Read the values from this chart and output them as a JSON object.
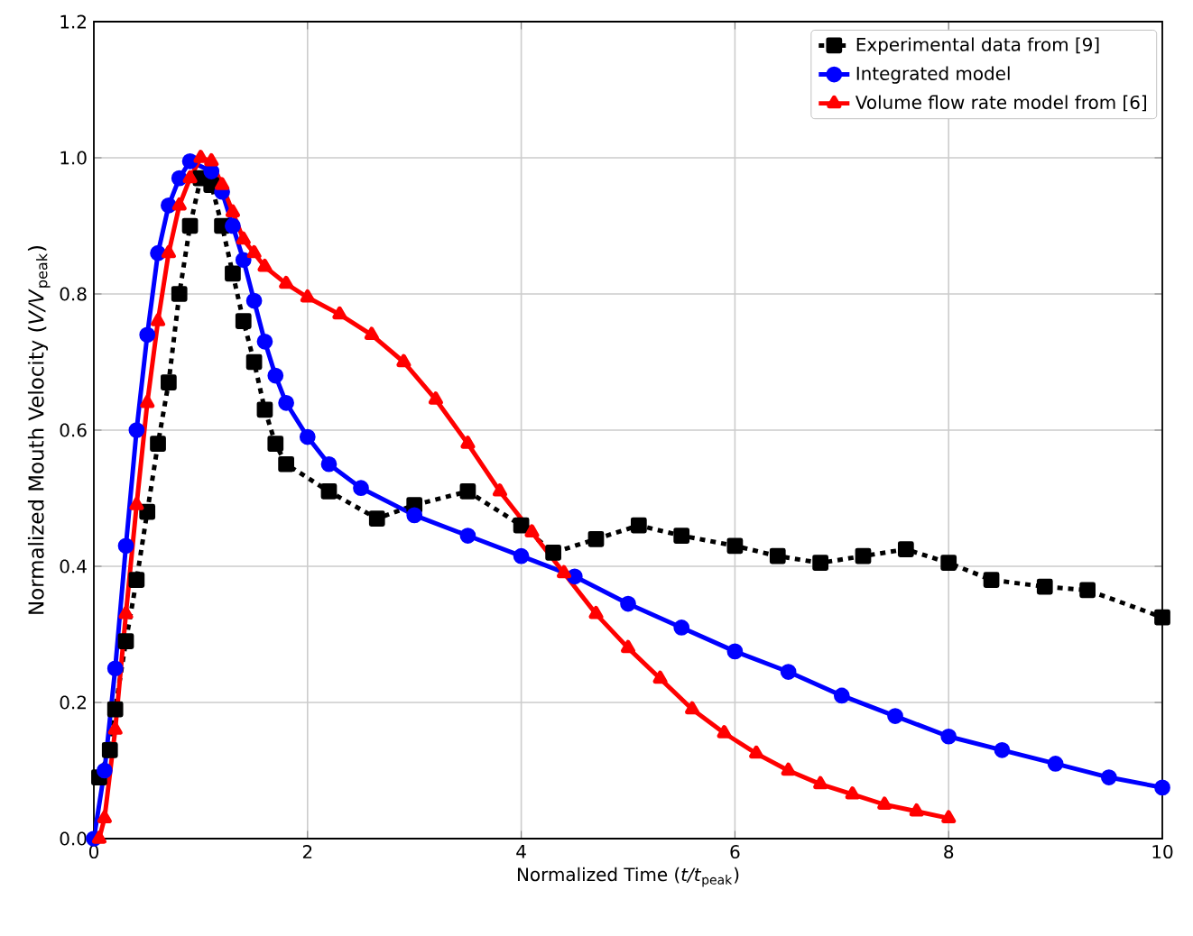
{
  "chart_data": {
    "type": "line",
    "xlabel": "Normalized Time (*t/t*$_{peak}$)",
    "ylabel": "Normalized Mouth Velocity (*V/V*$_{peak}$)",
    "xlim": [
      0,
      10
    ],
    "ylim": [
      0,
      1.2
    ],
    "xticks": [
      0,
      2,
      4,
      6,
      8,
      10
    ],
    "yticks": [
      {
        "value": 0,
        "label": "0.0"
      },
      {
        "value": 0.2,
        "label": "0.2"
      },
      {
        "value": 0.4,
        "label": "0.4"
      },
      {
        "value": 0.6,
        "label": "0.6"
      },
      {
        "value": 0.8,
        "label": "0.8"
      },
      {
        "value": 1.0,
        "label": "1.0"
      },
      {
        "value": 1.2,
        "label": "1.2"
      }
    ],
    "grid": true,
    "legend": "top right",
    "series": [
      {
        "name": "Experimental data from [9]",
        "color": "#000000",
        "marker": "square",
        "line_style": "dashed",
        "x": [
          0.05,
          0.15,
          0.2,
          0.3,
          0.4,
          0.5,
          0.6,
          0.7,
          0.8,
          0.9,
          1.0,
          1.05,
          1.1,
          1.2,
          1.3,
          1.4,
          1.5,
          1.6,
          1.7,
          1.8,
          2.2,
          2.65,
          3.0,
          3.5,
          4.0,
          4.3,
          4.7,
          5.1,
          5.5,
          6.0,
          6.4,
          6.8,
          7.2,
          7.6,
          8.0,
          8.4,
          8.9,
          9.3,
          10
        ],
        "values": [
          0.09,
          0.13,
          0.19,
          0.29,
          0.38,
          0.48,
          0.58,
          0.67,
          0.8,
          0.9,
          0.97,
          null,
          0.96,
          0.9,
          0.83,
          0.76,
          0.7,
          0.63,
          0.58,
          0.55,
          0.51,
          0.47,
          0.49,
          0.51,
          0.46,
          0.42,
          0.44,
          0.46,
          0.445,
          0.43,
          0.415,
          0.405,
          0.415,
          0.425,
          0.405,
          0.38,
          0.37,
          0.365,
          0.325
        ]
      },
      {
        "name": "Integrated model",
        "color": "#0000ff",
        "marker": "circle",
        "line_style": "solid",
        "x": [
          0,
          0.1,
          0.2,
          0.3,
          0.4,
          0.5,
          0.6,
          0.7,
          0.8,
          0.9,
          1.0,
          1.1,
          1.2,
          1.3,
          1.4,
          1.5,
          1.6,
          1.7,
          1.8,
          2.0,
          2.2,
          2.5,
          3.0,
          3.5,
          4.0,
          4.5,
          5.0,
          5.5,
          6.0,
          6.5,
          7.0,
          7.5,
          8.0,
          8.5,
          9.0,
          9.5,
          10
        ],
        "values": [
          0,
          0.1,
          0.25,
          0.43,
          0.6,
          0.74,
          0.86,
          0.93,
          0.97,
          0.995,
          null,
          0.98,
          0.95,
          0.9,
          0.85,
          0.79,
          0.73,
          0.68,
          0.64,
          0.59,
          0.55,
          0.515,
          0.475,
          0.445,
          0.415,
          0.385,
          0.345,
          0.31,
          0.275,
          0.245,
          0.21,
          0.18,
          0.15,
          0.13,
          0.11,
          0.09,
          0.075
        ]
      },
      {
        "name": "Volume flow rate model from [6]",
        "color": "#ff0000",
        "marker": "triangle",
        "line_style": "solid",
        "x": [
          0.05,
          0.1,
          0.2,
          0.3,
          0.4,
          0.5,
          0.6,
          0.7,
          0.8,
          0.9,
          1.0,
          1.1,
          1.2,
          1.3,
          1.4,
          1.5,
          1.6,
          1.8,
          2.0,
          2.3,
          2.6,
          2.9,
          3.2,
          3.5,
          3.8,
          4.1,
          4.4,
          4.7,
          5.0,
          5.3,
          5.6,
          5.9,
          6.2,
          6.5,
          6.8,
          7.1,
          7.4,
          7.7,
          8.0
        ],
        "values": [
          0,
          0.03,
          0.16,
          0.33,
          0.49,
          0.64,
          0.76,
          0.86,
          0.93,
          0.97,
          1.0,
          0.995,
          0.96,
          0.92,
          0.88,
          0.86,
          0.84,
          0.815,
          0.795,
          0.77,
          0.74,
          0.7,
          0.645,
          0.58,
          0.51,
          0.45,
          0.39,
          0.33,
          0.28,
          0.235,
          0.19,
          0.155,
          0.125,
          0.1,
          0.08,
          0.065,
          0.05,
          0.04,
          0.03
        ]
      }
    ]
  }
}
